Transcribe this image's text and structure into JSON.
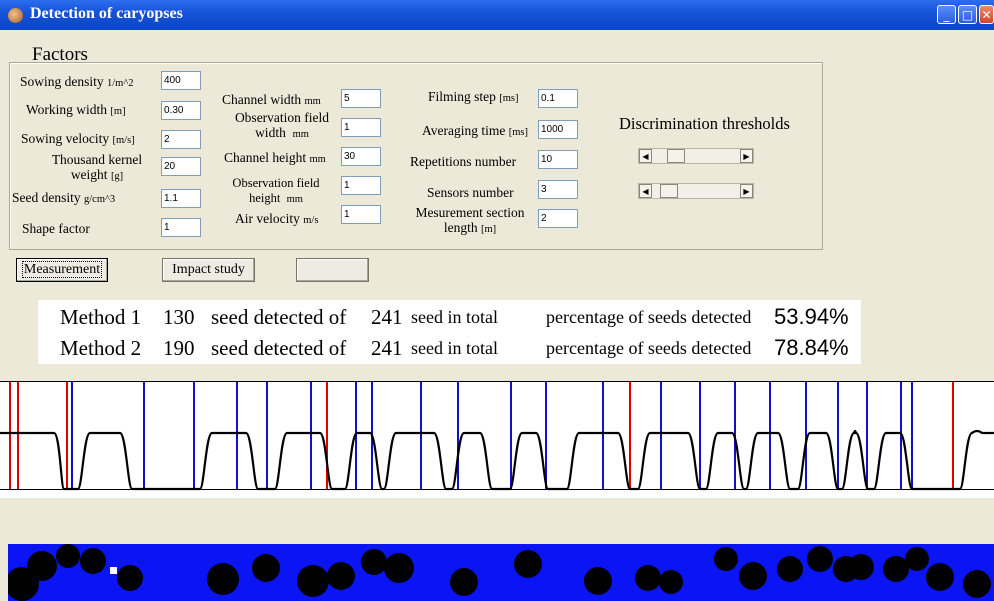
{
  "window": {
    "title": "Detection of caryopses",
    "minimize_glyph": "_",
    "maximize_glyph": "□",
    "close_glyph": "✕"
  },
  "factors": {
    "legend": "Factors",
    "col1": [
      {
        "label": "Sowing density",
        "unit": "1/m^2",
        "value": "400"
      },
      {
        "label": "Working width",
        "unit": "[m]",
        "value": "0.30"
      },
      {
        "label": "Sowing velocity",
        "unit": "[m/s]",
        "value": "2"
      },
      {
        "label_line1": "Thousand kernel",
        "label_line2": "weight",
        "unit": "[g]",
        "value": "20"
      },
      {
        "label": "Seed density",
        "unit": "g/cm^3",
        "value": "1.1"
      },
      {
        "label": "Shape factor",
        "value": "1"
      }
    ],
    "col2": [
      {
        "label": "Channel width",
        "unit": "mm",
        "value": "5"
      },
      {
        "label_line1": "Observation field",
        "label_line2": "width",
        "unit": "mm",
        "value": "1"
      },
      {
        "label": "Channel height",
        "unit": "mm",
        "value": "30"
      },
      {
        "label_line1": "Observation field",
        "label_line2": "height",
        "unit": "mm",
        "value": "1"
      },
      {
        "label": "Air velocity",
        "unit": "m/s",
        "value": "1"
      }
    ],
    "col3": [
      {
        "label": "Filming step",
        "unit": "[ms]",
        "value": "0.1"
      },
      {
        "label": "Averaging time",
        "unit": "[ms]",
        "value": "1000"
      },
      {
        "label": "Repetitions number",
        "value": "10"
      },
      {
        "label": "Sensors number",
        "value": "3"
      },
      {
        "label_line1": "Mesurement section",
        "label_line2": "length",
        "unit": "[m]",
        "value": "2"
      }
    ]
  },
  "discrimination": {
    "label": "Discrimination thresholds",
    "left_arrow": "◀",
    "right_arrow": "▶",
    "slider1_fraction": 0.22,
    "slider2_fraction": 0.12
  },
  "buttons": {
    "measurement": "Measurement",
    "impact_study": "Impact study",
    "blank": ""
  },
  "results": [
    {
      "method": "Method 1",
      "detected": "130",
      "text1": "seed detected of",
      "total": "241",
      "text2": "seed in total",
      "text3": "percentage of seeds detected",
      "percent": "53.94%"
    },
    {
      "method": "Method 2",
      "detected": "190",
      "text1": "seed detected of",
      "total": "241",
      "text2": "seed in total",
      "text3": "percentage of seeds detected",
      "percent": "78.84%"
    }
  ],
  "colors": {
    "signal": "#000000",
    "marker_red": "#e00000",
    "marker_blue": "#1010c8",
    "strip": "#0a14f5"
  }
}
